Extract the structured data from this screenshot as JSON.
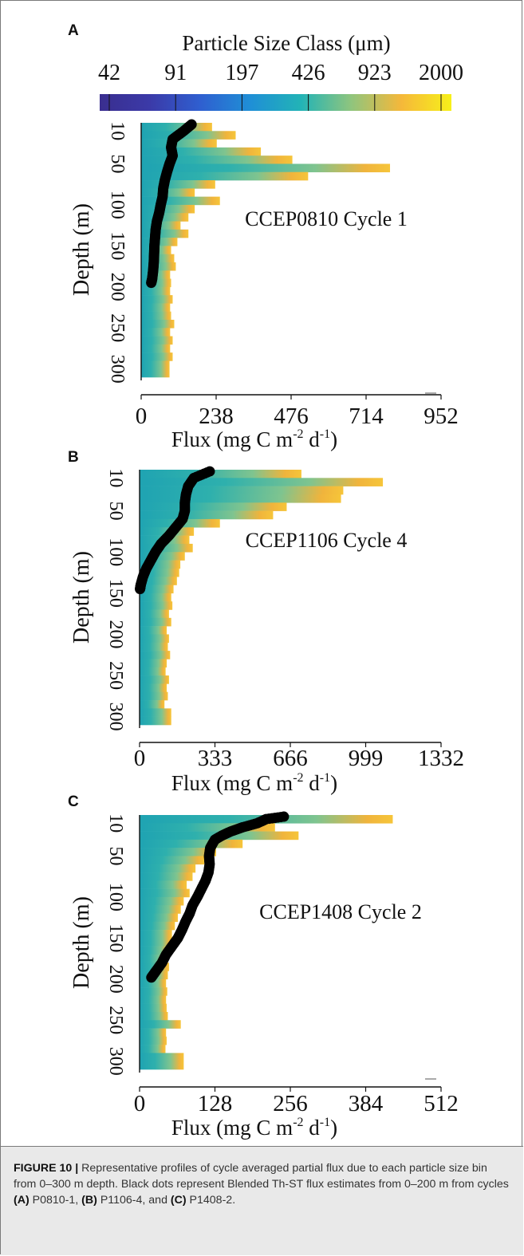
{
  "colorbar": {
    "title": "Particle Size Class (μm)",
    "ticks": [
      "42",
      "91",
      "197",
      "426",
      "923",
      "2000"
    ],
    "colors": [
      "#3a2e8f",
      "#3b3aa8",
      "#2f5fd0",
      "#1f8fd6",
      "#22b3b6",
      "#8fc57e",
      "#f5b83a",
      "#f7f01a"
    ]
  },
  "colors": {
    "dots": "#000000",
    "bar_teal": "#1fa3b2",
    "bar_green": "#5fbf9a",
    "bar_orange": "#f0b43c",
    "caption_bg": "#e9e9e9"
  },
  "chart_data": [
    {
      "panel": "A",
      "type": "bar",
      "orientation": "horizontal-stacked",
      "annotation": "CCEP0810 Cycle 1",
      "xlabel_main": "Flux (mg C m",
      "xlabel_sup1": "-2",
      "xlabel_mid": " d",
      "xlabel_sup2": "-1",
      "xlabel_end": ")",
      "ylabel": "Depth (m)",
      "xlim": [
        0,
        952
      ],
      "ylim": [
        0,
        320
      ],
      "xticks": [
        "0",
        "238",
        "476",
        "714",
        "952"
      ],
      "yticks": [
        "10",
        "50",
        "100",
        "150",
        "200",
        "250",
        "300"
      ],
      "bar_profile": {
        "depth": [
          5,
          15,
          25,
          35,
          45,
          55,
          65,
          75,
          85,
          95,
          105,
          115,
          125,
          135,
          145,
          155,
          165,
          175,
          185,
          195,
          205,
          215,
          225,
          235,
          245,
          255,
          265,
          275,
          285,
          295,
          305
        ],
        "total_flux": [
          225,
          300,
          240,
          380,
          480,
          790,
          530,
          235,
          170,
          250,
          170,
          150,
          125,
          150,
          115,
          95,
          105,
          110,
          92,
          95,
          92,
          100,
          92,
          95,
          105,
          92,
          100,
          92,
          100,
          90,
          90
        ]
      },
      "blended_thst": {
        "depth": [
          2,
          10,
          20,
          30,
          40,
          50,
          60,
          70,
          80,
          90,
          100,
          110,
          120,
          130,
          140,
          150,
          160,
          170,
          180,
          190,
          195
        ],
        "flux": [
          160,
          135,
          100,
          95,
          100,
          90,
          82,
          75,
          70,
          68,
          62,
          57,
          50,
          46,
          44,
          42,
          41,
          40,
          38,
          35,
          32
        ]
      }
    },
    {
      "panel": "B",
      "type": "bar",
      "orientation": "horizontal-stacked",
      "annotation": "CCEP1106 Cycle 4",
      "xlabel_main": "Flux (mg C m",
      "xlabel_sup1": "-2",
      "xlabel_mid": " d",
      "xlabel_sup2": "-1",
      "xlabel_end": ")",
      "ylabel": "Depth (m)",
      "xlim": [
        0,
        1332
      ],
      "ylim": [
        0,
        320
      ],
      "xticks": [
        "0",
        "333",
        "666",
        "999",
        "1332"
      ],
      "yticks": [
        "10",
        "50",
        "100",
        "150",
        "200",
        "250",
        "300"
      ],
      "bar_profile": {
        "depth": [
          5,
          15,
          25,
          35,
          45,
          55,
          65,
          75,
          85,
          95,
          105,
          115,
          125,
          135,
          145,
          155,
          165,
          175,
          185,
          195,
          205,
          215,
          225,
          235,
          245,
          255,
          265,
          275,
          285,
          295,
          305
        ],
        "total_flux": [
          715,
          1075,
          900,
          890,
          650,
          590,
          355,
          240,
          220,
          235,
          200,
          180,
          175,
          165,
          150,
          140,
          145,
          130,
          140,
          120,
          130,
          125,
          135,
          120,
          115,
          130,
          120,
          125,
          110,
          140,
          140
        ]
      },
      "blended_thst": {
        "depth": [
          2,
          10,
          20,
          30,
          40,
          50,
          60,
          70,
          80,
          90,
          100,
          110,
          120,
          130,
          140,
          145
        ],
        "flux": [
          310,
          240,
          215,
          205,
          200,
          200,
          190,
          160,
          130,
          95,
          70,
          50,
          30,
          15,
          5,
          2
        ]
      }
    },
    {
      "panel": "C",
      "type": "bar",
      "orientation": "horizontal-stacked",
      "annotation": "CCEP1408 Cycle 2",
      "xlabel_main": "Flux (mg C m",
      "xlabel_sup1": "-2",
      "xlabel_mid": " d",
      "xlabel_sup2": "-1",
      "xlabel_end": ")",
      "ylabel": "Depth (m)",
      "xlim": [
        0,
        512
      ],
      "ylim": [
        0,
        320
      ],
      "xticks": [
        "0",
        "128",
        "256",
        "384",
        "512"
      ],
      "yticks": [
        "10",
        "50",
        "100",
        "150",
        "200",
        "250",
        "300"
      ],
      "bar_profile": {
        "depth": [
          5,
          15,
          25,
          35,
          45,
          55,
          65,
          75,
          85,
          95,
          105,
          115,
          125,
          135,
          145,
          155,
          165,
          175,
          185,
          195,
          205,
          215,
          225,
          235,
          245,
          255,
          265,
          275,
          285,
          295,
          305
        ],
        "total_flux": [
          430,
          230,
          270,
          175,
          130,
          110,
          95,
          90,
          80,
          85,
          75,
          70,
          65,
          60,
          55,
          55,
          52,
          48,
          50,
          48,
          45,
          47,
          45,
          46,
          48,
          70,
          45,
          46,
          44,
          75,
          75
        ]
      },
      "blended_thst": {
        "depth": [
          2,
          5,
          10,
          15,
          20,
          25,
          30,
          40,
          50,
          60,
          70,
          80,
          90,
          100,
          110,
          120,
          130,
          140,
          150,
          160,
          170,
          180,
          190,
          198
        ],
        "flux": [
          245,
          215,
          200,
          175,
          155,
          140,
          128,
          120,
          118,
          119,
          117,
          112,
          105,
          98,
          90,
          85,
          78,
          72,
          65,
          55,
          45,
          38,
          28,
          20
        ]
      }
    }
  ],
  "caption": {
    "label": "FIGURE 10 |",
    "text_1": " Representative profiles of cycle averaged partial flux due to each particle size bin from 0–300 m depth. Black dots represent Blended Th-ST flux estimates from 0–200 m from cycles ",
    "ref_a": "(A)",
    "text_2": " P0810-1, ",
    "ref_b": "(B)",
    "text_3": " P1106-4, and ",
    "ref_c": "(C)",
    "text_4": " P1408-2."
  }
}
